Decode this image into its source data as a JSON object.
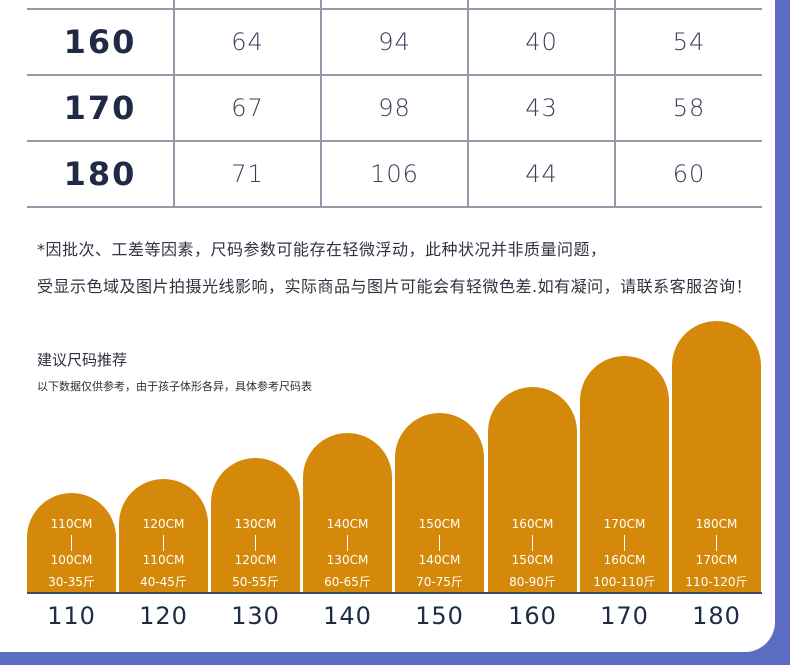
{
  "size_table": {
    "rows": [
      {
        "height": "160",
        "values": [
          "64",
          "94",
          "40",
          "54"
        ]
      },
      {
        "height": "170",
        "values": [
          "67",
          "98",
          "43",
          "58"
        ]
      },
      {
        "height": "180",
        "values": [
          "71",
          "106",
          "44",
          "60"
        ]
      }
    ]
  },
  "notes": {
    "line1": "*因批次、工差等因素，尺码参数可能存在轻微浮动，此种状况并非质量问题，",
    "line2": "受显示色域及图片拍摄光线影响，实际商品与图片可能会有轻微色差.如有凝问，请联系客服咨询！"
  },
  "recommendation": {
    "title": "建议尺码推荐",
    "subtitle": "以下数据仅供参考，由于孩子体形各异，具体参考尺码表",
    "bar_color": "#d5890a",
    "items": [
      {
        "size": "110",
        "top_height": "110CM",
        "bottom_height": "100CM",
        "weight": "30-35斤"
      },
      {
        "size": "120",
        "top_height": "120CM",
        "bottom_height": "110CM",
        "weight": "40-45斤"
      },
      {
        "size": "130",
        "top_height": "130CM",
        "bottom_height": "120CM",
        "weight": "50-55斤"
      },
      {
        "size": "140",
        "top_height": "140CM",
        "bottom_height": "130CM",
        "weight": "60-65斤"
      },
      {
        "size": "150",
        "top_height": "150CM",
        "bottom_height": "140CM",
        "weight": "70-75斤"
      },
      {
        "size": "160",
        "top_height": "160CM",
        "bottom_height": "150CM",
        "weight": "80-90斤"
      },
      {
        "size": "170",
        "top_height": "170CM",
        "bottom_height": "160CM",
        "weight": "100-110斤"
      },
      {
        "size": "180",
        "top_height": "180CM",
        "bottom_height": "170CM",
        "weight": "110-120斤"
      }
    ]
  }
}
